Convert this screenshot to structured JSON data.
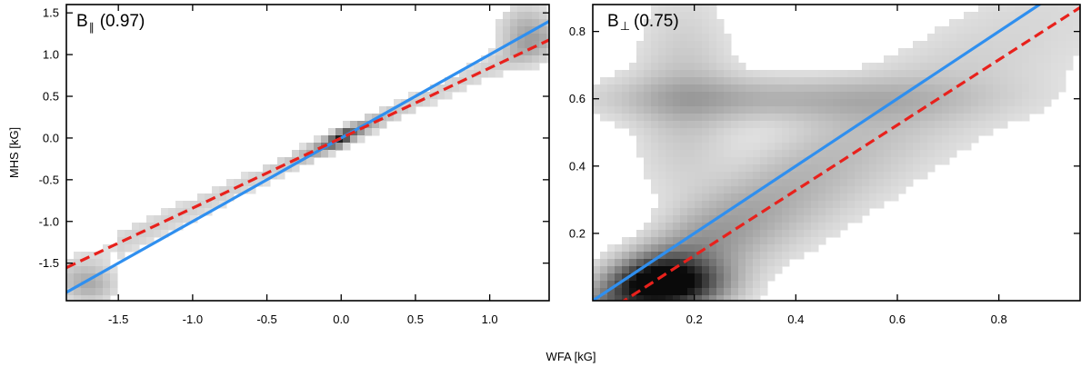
{
  "figure": {
    "xlabel": "WFA [kG]",
    "ylabel": "MHS [kG]"
  },
  "chart_data": [
    {
      "type": "heatmap",
      "title": "B",
      "title_sub": "∥",
      "title_value": "(0.97)",
      "xlabel": "WFA [kG]",
      "ylabel": "MHS [kG]",
      "xlim": [
        -1.85,
        1.4
      ],
      "ylim": [
        -1.95,
        1.6
      ],
      "xticks": [
        -1.5,
        -1.0,
        -0.5,
        0.0,
        0.5,
        1.0
      ],
      "xtick_labels": [
        "-1.5",
        "-1.0",
        "-0.5",
        "0.0",
        "0.5",
        "1.0"
      ],
      "yticks": [
        -1.5,
        -1.0,
        -0.5,
        0.0,
        0.5,
        1.0,
        1.5
      ],
      "ytick_labels": [
        "-1.5",
        "-1.0",
        "-0.5",
        "0.0",
        "0.5",
        "1.0",
        "1.5"
      ],
      "lines": [
        {
          "name": "identity",
          "style": "solid",
          "color": "#2f8fef",
          "slope": 1.0,
          "intercept": 0.0
        },
        {
          "name": "fit",
          "style": "dashed",
          "color": "#e8211c",
          "slope": 0.84,
          "intercept": 0.0
        }
      ]
    },
    {
      "type": "heatmap",
      "title": "B",
      "title_sub": "⊥",
      "title_value": "(0.75)",
      "xlabel": "WFA [kG]",
      "ylabel": "",
      "xlim": [
        0.0,
        0.96
      ],
      "ylim": [
        0.0,
        0.88
      ],
      "xticks": [
        0.2,
        0.4,
        0.6,
        0.8
      ],
      "xtick_labels": [
        "0.2",
        "0.4",
        "0.6",
        "0.8"
      ],
      "yticks": [
        0.2,
        0.4,
        0.6,
        0.8
      ],
      "ytick_labels": [
        "0.2",
        "0.4",
        "0.6",
        "0.8"
      ],
      "lines": [
        {
          "name": "identity",
          "style": "solid",
          "color": "#2f8fef",
          "slope": 1.0,
          "intercept": 0.0
        },
        {
          "name": "fit",
          "style": "dashed",
          "color": "#e8211c",
          "slope": 0.97,
          "intercept": -0.06
        }
      ]
    }
  ]
}
